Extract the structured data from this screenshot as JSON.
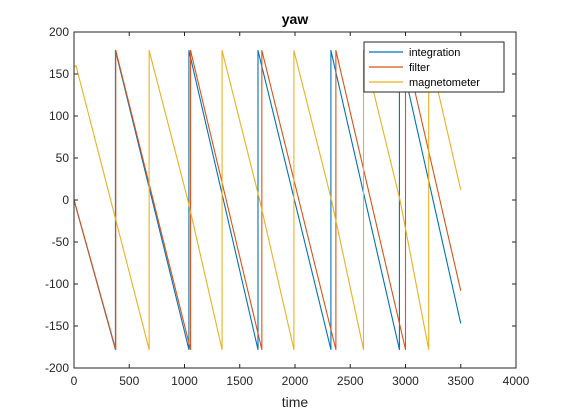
{
  "colors": {
    "integration": "#0072BD",
    "filter": "#D95319",
    "magnetometer": "#EDB120",
    "axis": "#262626"
  },
  "chart_data": {
    "type": "line",
    "title": "yaw",
    "xlabel": "time",
    "ylabel": "",
    "xlim": [
      0,
      4000
    ],
    "ylim": [
      -200,
      200
    ],
    "x_ticks": [
      0,
      500,
      1000,
      1500,
      2000,
      2500,
      3000,
      3500,
      4000
    ],
    "y_ticks": [
      -200,
      -150,
      -100,
      -50,
      0,
      50,
      100,
      150,
      200
    ],
    "grid": false,
    "legend_position": "top-right",
    "series": [
      {
        "name": "integration",
        "color": "#0072BD",
        "points": [
          [
            0,
            0
          ],
          [
            375,
            -178
          ],
          [
            375,
            178
          ],
          [
            1040,
            -178
          ],
          [
            1040,
            178
          ],
          [
            1665,
            -178
          ],
          [
            1665,
            178
          ],
          [
            2325,
            -178
          ],
          [
            2325,
            178
          ],
          [
            2945,
            -178
          ],
          [
            2945,
            178
          ],
          [
            3500,
            -147
          ]
        ]
      },
      {
        "name": "filter",
        "color": "#D95319",
        "points": [
          [
            0,
            0
          ],
          [
            378,
            -178
          ],
          [
            378,
            178
          ],
          [
            1055,
            -178
          ],
          [
            1055,
            178
          ],
          [
            1700,
            -178
          ],
          [
            1700,
            178
          ],
          [
            2370,
            -178
          ],
          [
            2370,
            178
          ],
          [
            3000,
            -178
          ],
          [
            3000,
            178
          ],
          [
            3500,
            -108
          ]
        ]
      },
      {
        "name": "magnetometer",
        "color": "#EDB120",
        "points": [
          [
            0,
            158
          ],
          [
            18,
            160
          ],
          [
            375,
            -22
          ],
          [
            680,
            -178
          ],
          [
            680,
            178
          ],
          [
            1030,
            0
          ],
          [
            1340,
            -178
          ],
          [
            1340,
            178
          ],
          [
            1680,
            0
          ],
          [
            1990,
            -178
          ],
          [
            1990,
            178
          ],
          [
            2330,
            0
          ],
          [
            2620,
            -178
          ],
          [
            2620,
            178
          ],
          [
            2950,
            0
          ],
          [
            3210,
            -178
          ],
          [
            3210,
            178
          ],
          [
            3500,
            12
          ]
        ]
      }
    ]
  }
}
